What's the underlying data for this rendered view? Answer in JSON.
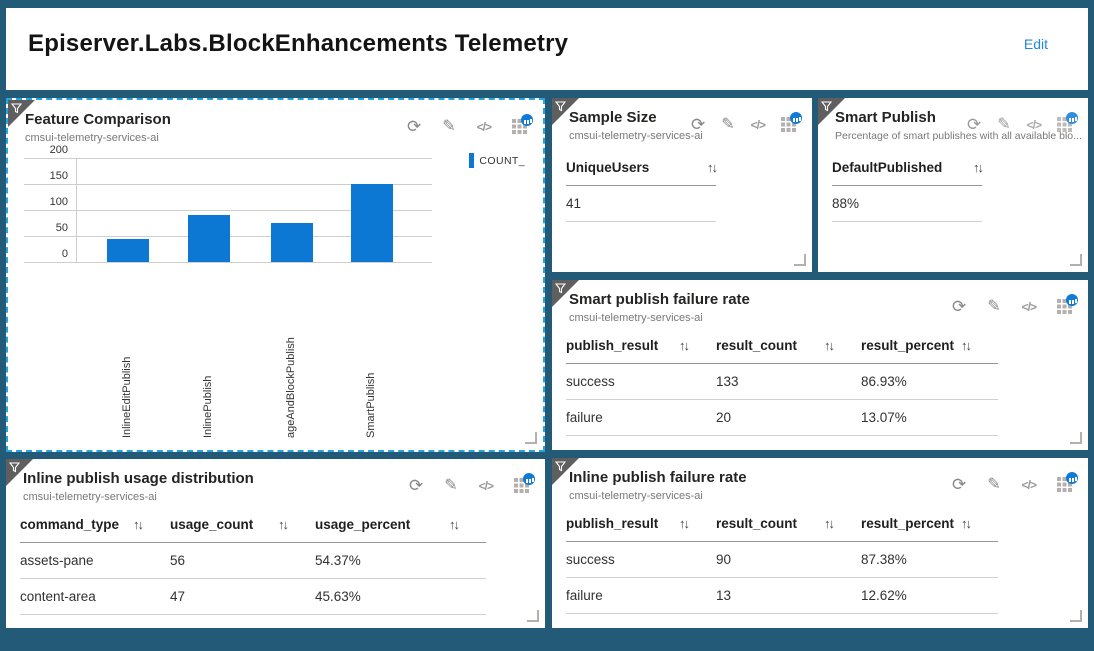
{
  "colors": {
    "frame_teal": "#235a78",
    "accent_blue": "#0d78d4",
    "selected_dash_blue": "#27a4de",
    "edit_link_blue": "#2488d8",
    "corner_gray": "#5f5f5f"
  },
  "icons": {
    "refresh_glyph": "⟳",
    "edit_glyph": "✎",
    "code_glyph": "</>",
    "sort_glyph": "↑↓"
  },
  "header": {
    "title": "Episerver.Labs.BlockEnhancements Telemetry",
    "edit_label": "Edit"
  },
  "chart_data": {
    "type": "bar",
    "title": "Feature Comparison",
    "categories": [
      "InlineEditPublish",
      "InlinePublish",
      "ageAndBlockPublish",
      "SmartPublish"
    ],
    "values": [
      45,
      90,
      75,
      150
    ],
    "legend": "COUNT_",
    "legend_position": "right",
    "xlabel": "",
    "ylabel": "",
    "ylim": [
      0,
      200
    ],
    "yticks": [
      0,
      50,
      100,
      150,
      200
    ],
    "grid": true,
    "bar_color": "#0d78d4"
  },
  "panels": [
    {
      "title": "Feature Comparison",
      "subtitle": "cmsui-telemetry-services-ai"
    },
    {
      "title": "Sample Size",
      "subtitle": "cmsui-telemetry-services-ai",
      "table": {
        "columns": [
          "UniqueUsers"
        ],
        "rows": [
          [
            "41"
          ]
        ]
      }
    },
    {
      "title": "Smart Publish",
      "subtitle": "Percentage of smart publishes with all available blo...",
      "table": {
        "columns": [
          "DefaultPublished"
        ],
        "rows": [
          [
            "88%"
          ]
        ]
      }
    },
    {
      "title": "Smart publish failure rate",
      "subtitle": "cmsui-telemetry-services-ai",
      "table": {
        "columns": [
          "publish_result",
          "result_count",
          "result_percent"
        ],
        "rows": [
          [
            "success",
            "133",
            "86.93%"
          ],
          [
            "failure",
            "20",
            "13.07%"
          ]
        ]
      }
    },
    {
      "title": "Inline publish usage distribution",
      "subtitle": "cmsui-telemetry-services-ai",
      "table": {
        "columns": [
          "command_type",
          "usage_count",
          "usage_percent"
        ],
        "rows": [
          [
            "assets-pane",
            "56",
            "54.37%"
          ],
          [
            "content-area",
            "47",
            "45.63%"
          ]
        ]
      }
    },
    {
      "title": "Inline publish failure rate",
      "subtitle": "cmsui-telemetry-services-ai",
      "table": {
        "columns": [
          "publish_result",
          "result_count",
          "result_percent"
        ],
        "rows": [
          [
            "success",
            "90",
            "87.38%"
          ],
          [
            "failure",
            "13",
            "12.62%"
          ]
        ]
      }
    }
  ]
}
